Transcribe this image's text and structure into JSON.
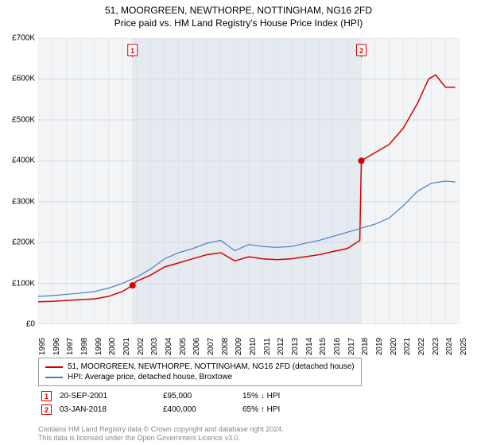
{
  "title_line1": "51, MOORGREEN, NEWTHORPE, NOTTINGHAM, NG16 2FD",
  "title_line2": "Price paid vs. HM Land Registry's House Price Index (HPI)",
  "chart": {
    "type": "line",
    "background_color": "#ffffff",
    "plot_background_color": "#f2f4f6",
    "grid_color": "#d6dbe0",
    "shaded_band_x": [
      2001.7,
      2018.0
    ],
    "shaded_band_color": "#e5eaf0",
    "y": {
      "min": 0,
      "max": 700000,
      "step": 100000,
      "ticks": [
        0,
        100000,
        200000,
        300000,
        400000,
        500000,
        600000,
        700000
      ],
      "tick_labels": [
        "£0",
        "£100K",
        "£200K",
        "£300K",
        "£400K",
        "£500K",
        "£600K",
        "£700K"
      ]
    },
    "x": {
      "min": 1995,
      "max": 2025,
      "step": 1,
      "ticks": [
        1995,
        1996,
        1997,
        1998,
        1999,
        2000,
        2001,
        2002,
        2003,
        2004,
        2005,
        2006,
        2007,
        2008,
        2009,
        2010,
        2011,
        2012,
        2013,
        2014,
        2015,
        2016,
        2017,
        2018,
        2019,
        2020,
        2021,
        2022,
        2023,
        2024,
        2025
      ]
    },
    "series": [
      {
        "name": "property_price",
        "label": "51, MOORGREEN, NEWTHORPE, NOTTINGHAM, NG16 2FD (detached house)",
        "color": "#d40000",
        "line_width": 1.5,
        "xy": [
          [
            1995,
            55000
          ],
          [
            1996,
            56000
          ],
          [
            1997,
            58000
          ],
          [
            1998,
            60000
          ],
          [
            1999,
            62000
          ],
          [
            2000,
            68000
          ],
          [
            2001,
            80000
          ],
          [
            2001.72,
            95000
          ],
          [
            2002,
            105000
          ],
          [
            2003,
            120000
          ],
          [
            2004,
            140000
          ],
          [
            2005,
            150000
          ],
          [
            2006,
            160000
          ],
          [
            2007,
            170000
          ],
          [
            2008,
            175000
          ],
          [
            2009,
            155000
          ],
          [
            2010,
            165000
          ],
          [
            2011,
            160000
          ],
          [
            2012,
            158000
          ],
          [
            2013,
            160000
          ],
          [
            2014,
            165000
          ],
          [
            2015,
            170000
          ],
          [
            2016,
            178000
          ],
          [
            2017,
            185000
          ],
          [
            2017.9,
            205000
          ],
          [
            2018.01,
            400000
          ],
          [
            2018.5,
            410000
          ],
          [
            2019,
            420000
          ],
          [
            2020,
            440000
          ],
          [
            2021,
            480000
          ],
          [
            2022,
            540000
          ],
          [
            2022.8,
            600000
          ],
          [
            2023.3,
            610000
          ],
          [
            2024,
            580000
          ],
          [
            2024.7,
            580000
          ]
        ]
      },
      {
        "name": "hpi",
        "label": "HPI: Average price, detached house, Broxtowe",
        "color": "#4a7fbf",
        "line_width": 1.2,
        "xy": [
          [
            1995,
            68000
          ],
          [
            1996,
            70000
          ],
          [
            1997,
            73000
          ],
          [
            1998,
            76000
          ],
          [
            1999,
            80000
          ],
          [
            2000,
            88000
          ],
          [
            2001,
            100000
          ],
          [
            2002,
            115000
          ],
          [
            2003,
            135000
          ],
          [
            2004,
            160000
          ],
          [
            2005,
            175000
          ],
          [
            2006,
            185000
          ],
          [
            2007,
            198000
          ],
          [
            2008,
            205000
          ],
          [
            2009,
            180000
          ],
          [
            2010,
            195000
          ],
          [
            2011,
            190000
          ],
          [
            2012,
            188000
          ],
          [
            2013,
            190000
          ],
          [
            2014,
            198000
          ],
          [
            2015,
            205000
          ],
          [
            2016,
            215000
          ],
          [
            2017,
            225000
          ],
          [
            2018,
            235000
          ],
          [
            2019,
            245000
          ],
          [
            2020,
            260000
          ],
          [
            2021,
            290000
          ],
          [
            2022,
            325000
          ],
          [
            2023,
            345000
          ],
          [
            2024,
            350000
          ],
          [
            2024.7,
            348000
          ]
        ]
      }
    ],
    "markers": [
      {
        "id": "1",
        "x": 2001.72,
        "y": 95000,
        "color": "#d40000"
      },
      {
        "id": "2",
        "x": 2018.01,
        "y": 400000,
        "color": "#d40000"
      }
    ],
    "marker_flags": [
      {
        "id": "1",
        "x": 2001.72,
        "color": "#d40000"
      },
      {
        "id": "2",
        "x": 2018.01,
        "color": "#d40000"
      }
    ]
  },
  "legend": {
    "items": [
      {
        "color": "#d40000",
        "label": "51, MOORGREEN, NEWTHORPE, NOTTINGHAM, NG16 2FD (detached house)"
      },
      {
        "color": "#4a7fbf",
        "label": "HPI: Average price, detached house, Broxtowe"
      }
    ]
  },
  "transactions": [
    {
      "id": "1",
      "color": "#d40000",
      "date": "20-SEP-2001",
      "price": "£95,000",
      "delta": "15% ↓ HPI"
    },
    {
      "id": "2",
      "color": "#d40000",
      "date": "03-JAN-2018",
      "price": "£400,000",
      "delta": "65% ↑ HPI"
    }
  ],
  "footer": {
    "line1": "Contains HM Land Registry data © Crown copyright and database right 2024.",
    "line2": "This data is licensed under the Open Government Licence v3.0."
  }
}
